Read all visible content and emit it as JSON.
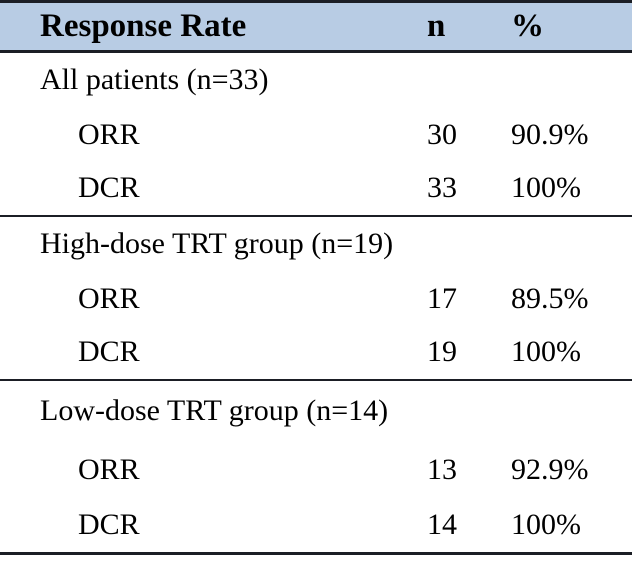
{
  "table": {
    "header": {
      "label": "Response Rate",
      "n": "n",
      "percent": "%"
    },
    "sections": [
      {
        "label": "All patients (n=33)",
        "rows": [
          {
            "name": "ORR",
            "n": "30",
            "percent": "90.9%"
          },
          {
            "name": "DCR",
            "n": "33",
            "percent": "100%"
          }
        ]
      },
      {
        "label": "High-dose TRT group (n=19)",
        "rows": [
          {
            "name": "ORR",
            "n": "17",
            "percent": "89.5%"
          },
          {
            "name": "DCR",
            "n": "19",
            "percent": "100%"
          }
        ]
      },
      {
        "label": "Low-dose TRT group (n=14)",
        "rows": [
          {
            "name": "ORR",
            "n": "13",
            "percent": "92.9%"
          },
          {
            "name": "DCR",
            "n": "14",
            "percent": "100%"
          }
        ]
      }
    ],
    "style": {
      "header_bg": "#b8cce4",
      "border_color": "#1b1e25",
      "text_color": "#000000",
      "page_bg": "#ffffff"
    }
  }
}
